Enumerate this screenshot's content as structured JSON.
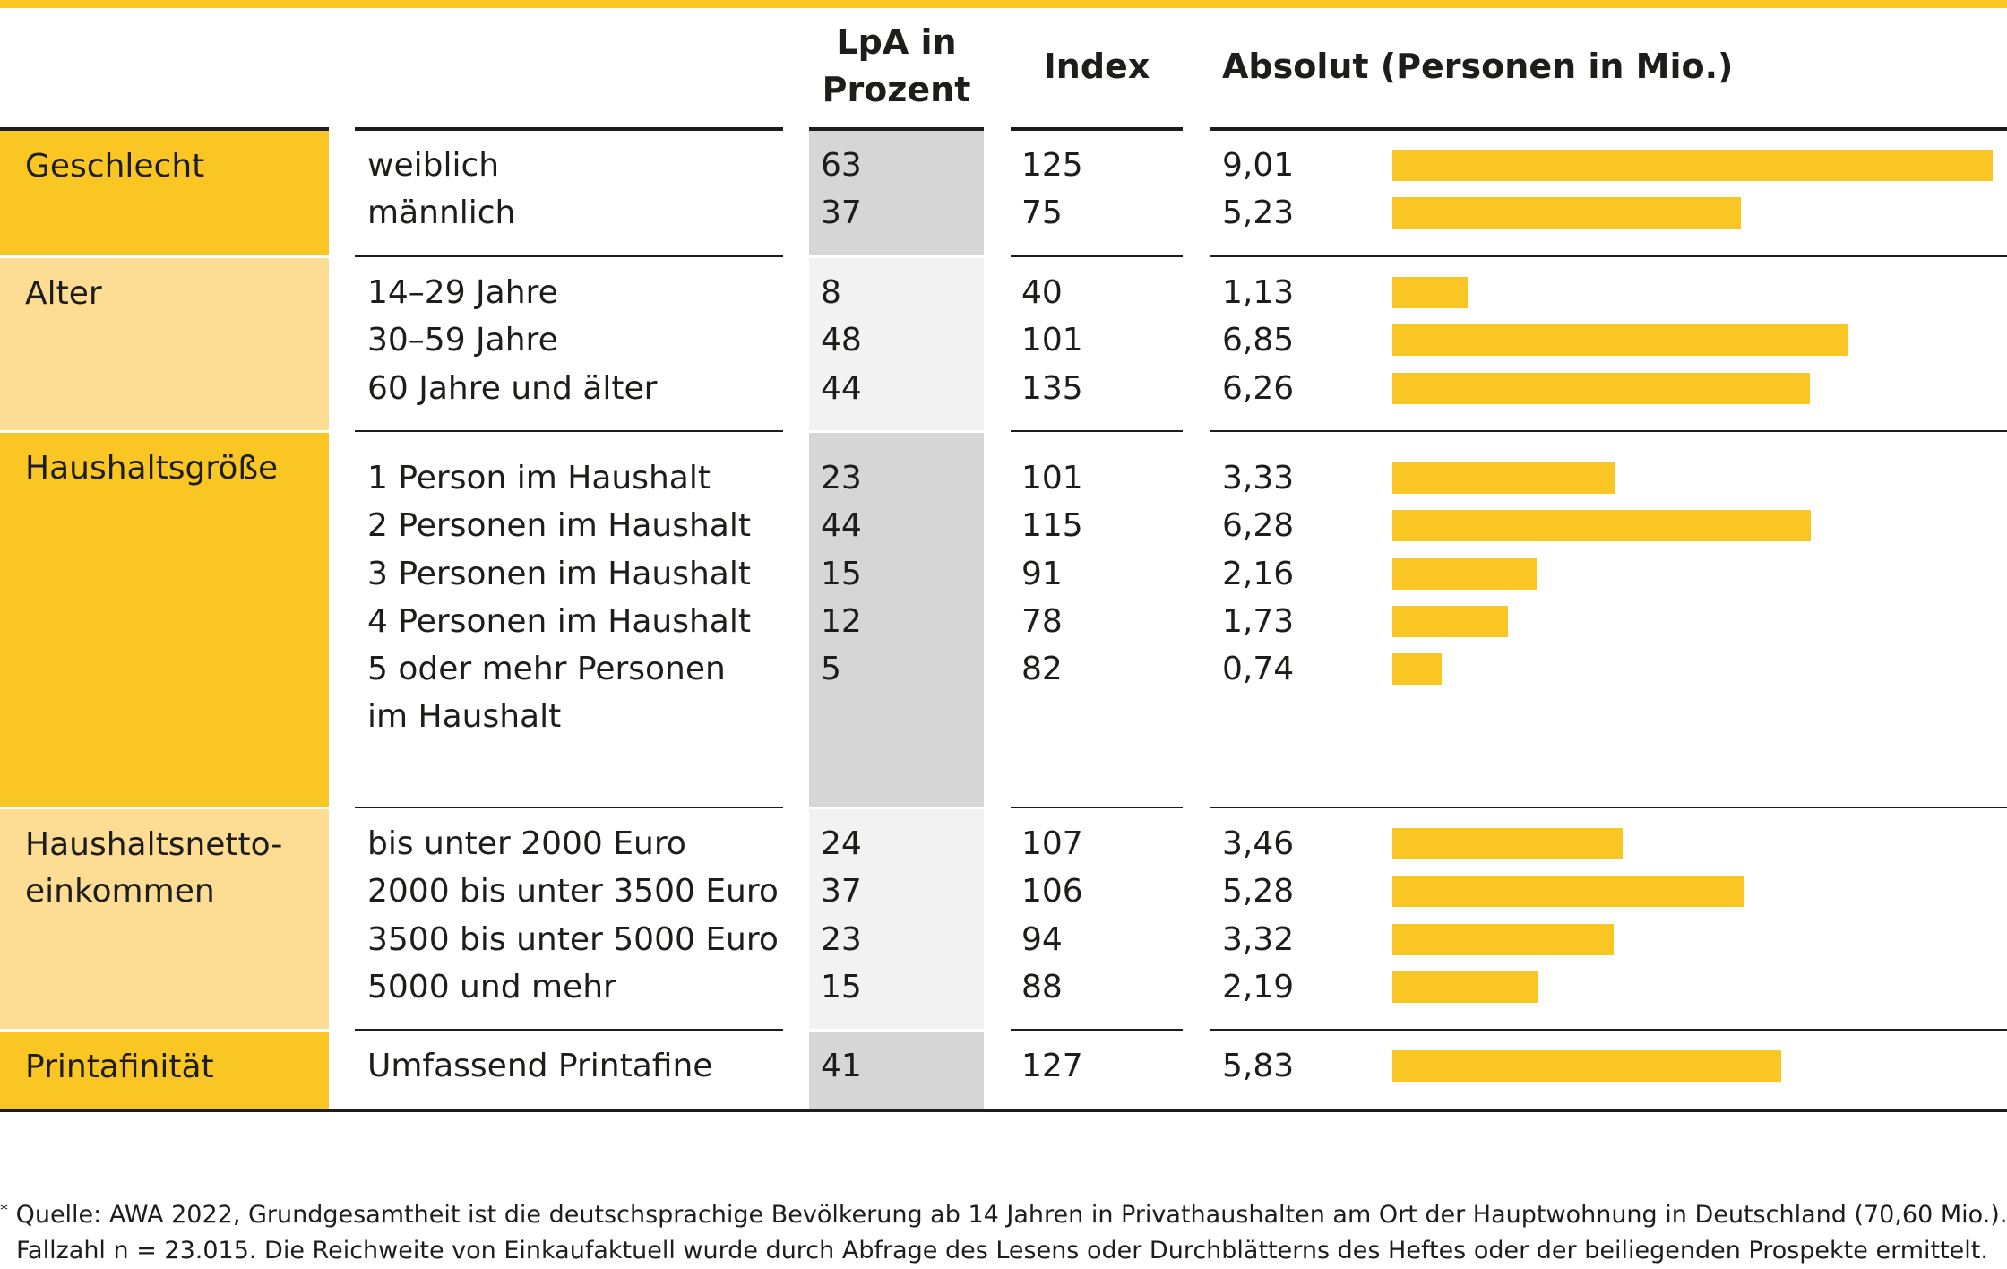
{
  "colors": {
    "accent": "#f9c623",
    "accent_light": "#fddd93",
    "shade_dark": "#d6d6d6",
    "shade_light": "#f2f2f2",
    "rule": "#1d1d1b"
  },
  "header": {
    "lpa": "LpA in\nProzent",
    "index": "Index",
    "absolut": "Absolut (Personen in Mio.)"
  },
  "chart_data": {
    "type": "table",
    "columns": [
      "LpA in Prozent",
      "Index",
      "Absolut (Personen in Mio.)"
    ],
    "groups": [
      {
        "category": "Geschlecht",
        "rows": [
          {
            "label": "weiblich",
            "lpa": "63",
            "index": "125",
            "absolut": "9,01",
            "value": 9.01
          },
          {
            "label": "männlich",
            "lpa": "37",
            "index": "75",
            "absolut": "5,23",
            "value": 5.23
          }
        ]
      },
      {
        "category": "Alter",
        "rows": [
          {
            "label": "14–29 Jahre",
            "lpa": "8",
            "index": "40",
            "absolut": "1,13",
            "value": 1.13
          },
          {
            "label": "30–59 Jahre",
            "lpa": "48",
            "index": "101",
            "absolut": "6,85",
            "value": 6.85
          },
          {
            "label": "60 Jahre und älter",
            "lpa": "44",
            "index": "135",
            "absolut": "6,26",
            "value": 6.26
          }
        ]
      },
      {
        "category": "Haushaltsgröße",
        "rows": [
          {
            "label": "1 Person im Haushalt",
            "lpa": "23",
            "index": "101",
            "absolut": "3,33",
            "value": 3.33
          },
          {
            "label": "2 Personen im Haushalt",
            "lpa": "44",
            "index": "115",
            "absolut": "6,28",
            "value": 6.28
          },
          {
            "label": "3 Personen im Haushalt",
            "lpa": "15",
            "index": "91",
            "absolut": "2,16",
            "value": 2.16
          },
          {
            "label": "4 Personen im Haushalt",
            "lpa": "12",
            "index": "78",
            "absolut": "1,73",
            "value": 1.73
          },
          {
            "label": "5 oder mehr Personen\nim Haushalt",
            "lpa": "5",
            "index": "82",
            "absolut": "0,74",
            "value": 0.74
          }
        ]
      },
      {
        "category": "Haushaltsnetto-\neinkommen",
        "rows": [
          {
            "label": "bis unter 2000 Euro",
            "lpa": "24",
            "index": "107",
            "absolut": "3,46",
            "value": 3.46
          },
          {
            "label": "2000 bis unter 3500 Euro",
            "lpa": "37",
            "index": "106",
            "absolut": "5,28",
            "value": 5.28
          },
          {
            "label": "3500 bis unter 5000 Euro",
            "lpa": "23",
            "index": "94",
            "absolut": "3,32",
            "value": 3.32
          },
          {
            "label": "5000 und mehr",
            "lpa": "15",
            "index": "88",
            "absolut": "2,19",
            "value": 2.19
          }
        ]
      },
      {
        "category": "Printafinität",
        "rows": [
          {
            "label": "Umfassend Printafine",
            "lpa": "41",
            "index": "127",
            "absolut": "5,83",
            "value": 5.83
          }
        ]
      }
    ]
  },
  "footnote": {
    "marker": "*",
    "line1": " Quelle: AWA 2022, Grundgesamtheit ist die deutschsprachige Bevölkerung ab 14 Jahren in Privathaushalten am Ort der Hauptwohnung in Deutschland (70,60 Mio.).",
    "line2": "Fallzahl n = 23.015. Die Reichweite von Einkaufaktuell wurde durch Abfrage des Lesens oder Durchblätterns des Heftes oder der beiliegenden Prospekte ermittelt."
  }
}
